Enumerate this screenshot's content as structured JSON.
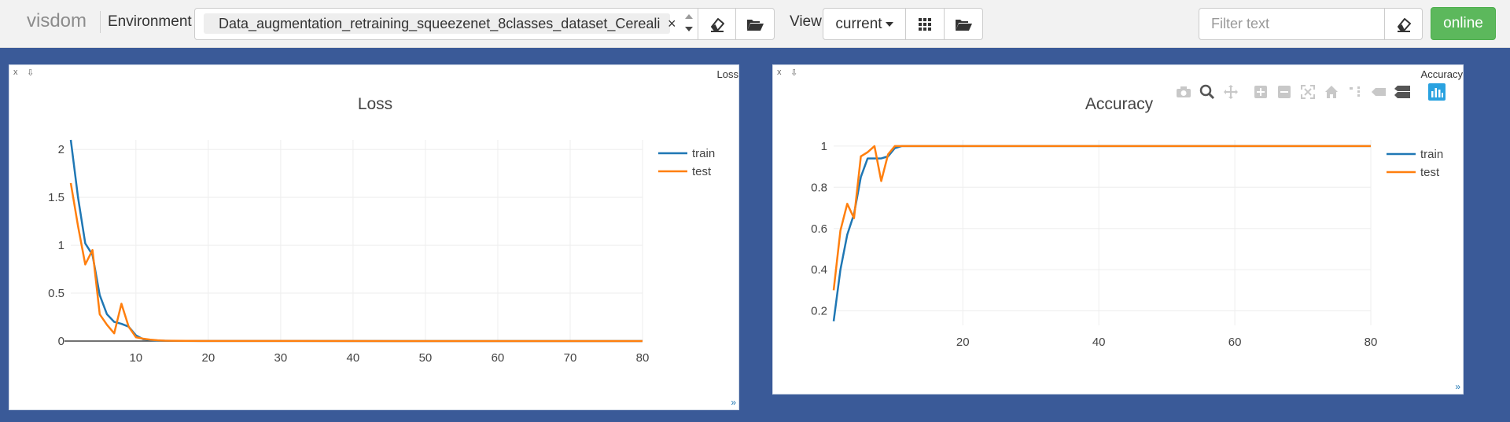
{
  "navbar": {
    "brand": "visdom",
    "environment_label": "Environment",
    "environment_value": "Data_augmentation_retraining_squeezenet_8classes_dataset_Cereali",
    "environment_remove": "×",
    "view_label": "View",
    "view_selected": "current",
    "filter_placeholder": "Filter text",
    "status": "online",
    "colors": {
      "status_bg": "#5cb85c",
      "background": "#3a5a98"
    }
  },
  "panes": [
    {
      "window_title": "Loss",
      "close_glyph": "x",
      "download_glyph": "⇩",
      "resize_glyph": "»",
      "chart_data": {
        "type": "line",
        "title": "Loss",
        "xlabel": "",
        "ylabel": "",
        "xlim": [
          1,
          80
        ],
        "ylim": [
          0,
          2.1
        ],
        "xticks": [
          "10",
          "20",
          "30",
          "40",
          "50",
          "60",
          "70",
          "80"
        ],
        "yticks": [
          "0",
          "0.5",
          "1",
          "1.5",
          "2"
        ],
        "grid": true,
        "legend_position": "top-right",
        "series": [
          {
            "name": "train",
            "color": "#1f77b4",
            "x": [
              1,
              2,
              3,
              4,
              5,
              6,
              7,
              8,
              9,
              10,
              11,
              12,
              13,
              14,
              15,
              20,
              80
            ],
            "y": [
              2.1,
              1.5,
              1.02,
              0.9,
              0.48,
              0.28,
              0.2,
              0.18,
              0.15,
              0.06,
              0.02,
              0.01,
              0.005,
              0.003,
              0.002,
              0.001,
              0.0
            ]
          },
          {
            "name": "test",
            "color": "#ff7f0e",
            "x": [
              1,
              2,
              3,
              4,
              5,
              6,
              7,
              8,
              9,
              10,
              11,
              12,
              13,
              14,
              15,
              20,
              80
            ],
            "y": [
              1.65,
              1.2,
              0.8,
              0.95,
              0.28,
              0.17,
              0.08,
              0.39,
              0.15,
              0.04,
              0.025,
              0.015,
              0.008,
              0.004,
              0.003,
              0.001,
              0.0
            ]
          }
        ]
      }
    },
    {
      "window_title": "Accuracy",
      "close_glyph": "x",
      "download_glyph": "⇩",
      "resize_glyph": "»",
      "chart_data": {
        "type": "line",
        "title": "Accuracy",
        "xlabel": "",
        "ylabel": "",
        "xlim": [
          1,
          80
        ],
        "ylim": [
          0.13,
          1.03
        ],
        "xticks": [
          "20",
          "40",
          "60",
          "80"
        ],
        "yticks": [
          "0.2",
          "0.4",
          "0.6",
          "0.8",
          "1"
        ],
        "grid": true,
        "legend_position": "top-right",
        "series": [
          {
            "name": "train",
            "color": "#1f77b4",
            "x": [
              1,
              2,
              3,
              4,
              5,
              6,
              7,
              8,
              9,
              10,
              11,
              80
            ],
            "y": [
              0.15,
              0.4,
              0.57,
              0.67,
              0.85,
              0.94,
              0.94,
              0.94,
              0.95,
              0.99,
              1.0,
              1.0
            ]
          },
          {
            "name": "test",
            "color": "#ff7f0e",
            "x": [
              1,
              2,
              3,
              4,
              5,
              6,
              7,
              8,
              9,
              10,
              11,
              80
            ],
            "y": [
              0.3,
              0.59,
              0.72,
              0.65,
              0.95,
              0.97,
              1.0,
              0.83,
              0.96,
              1.0,
              1.0,
              1.0
            ]
          }
        ]
      }
    }
  ],
  "modebar_icons": [
    "camera-icon",
    "zoom-icon",
    "pan-icon",
    "zoom-in-icon",
    "zoom-out-icon",
    "autoscale-icon",
    "reset-axes-icon",
    "spike-lines-icon",
    "hover-closest-icon",
    "hover-compare-icon",
    "plotly-logo-icon"
  ]
}
